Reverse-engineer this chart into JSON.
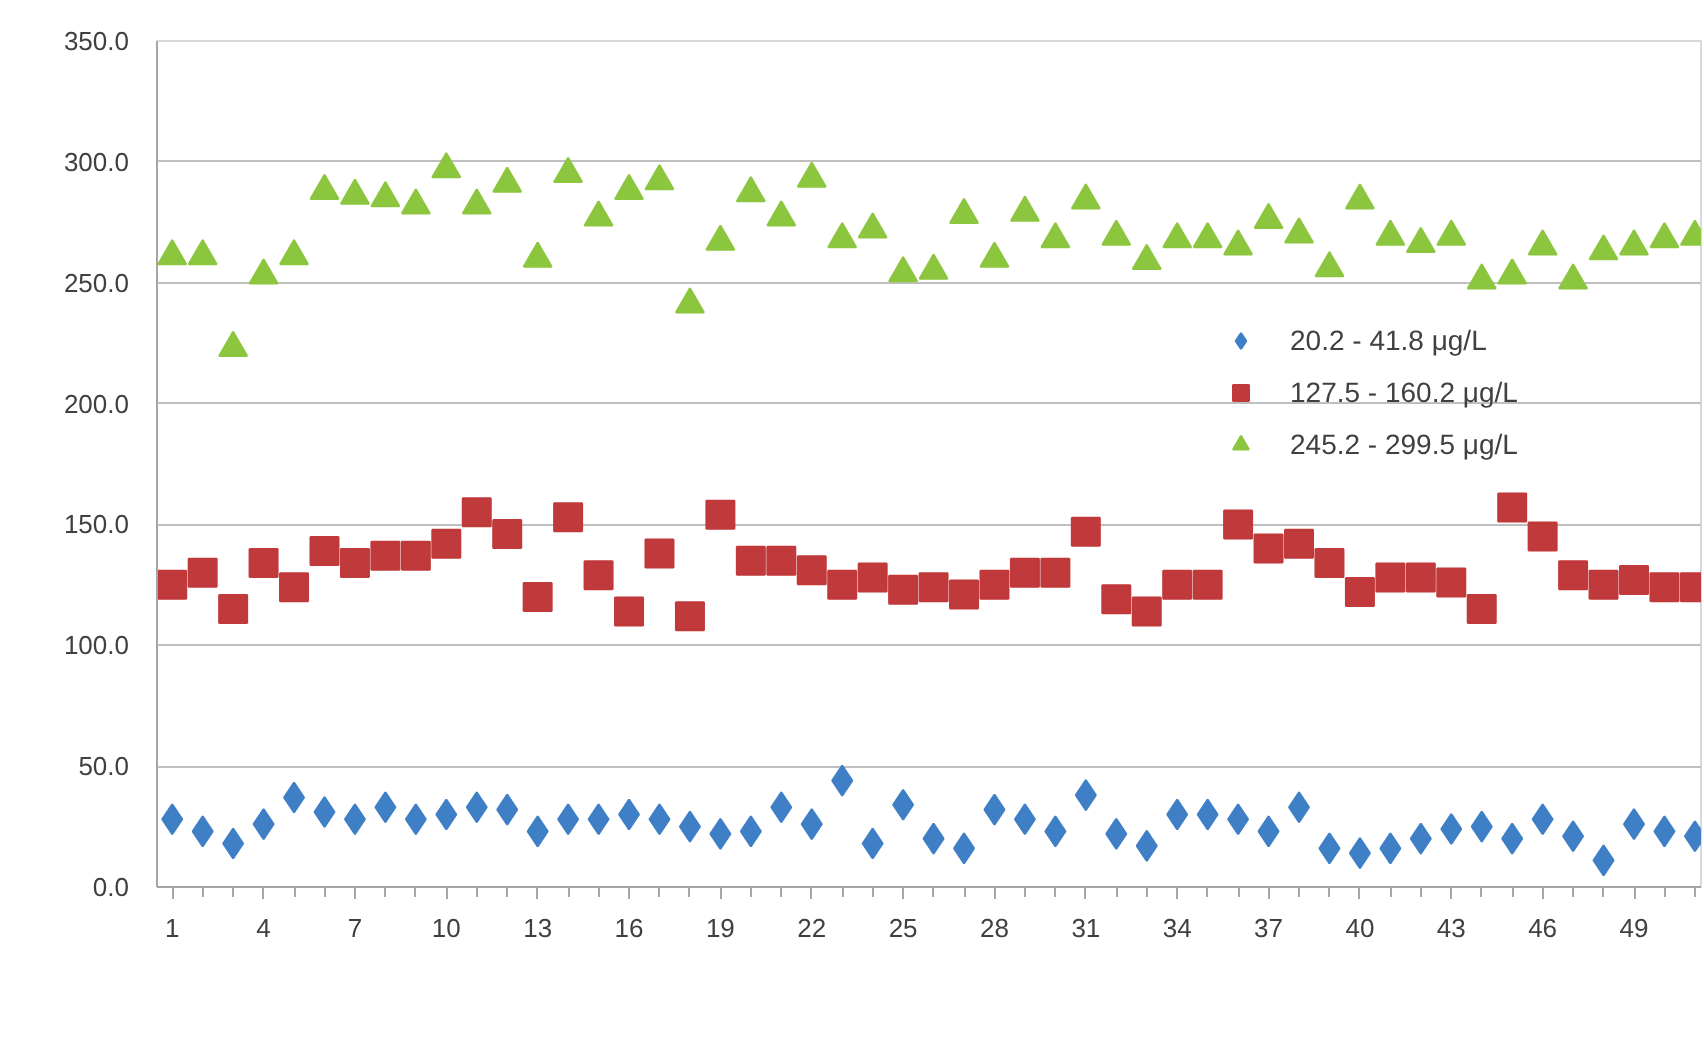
{
  "chart_data": {
    "type": "scatter",
    "x": [
      1,
      2,
      3,
      4,
      5,
      6,
      7,
      8,
      9,
      10,
      11,
      12,
      13,
      14,
      15,
      16,
      17,
      18,
      19,
      20,
      21,
      22,
      23,
      24,
      25,
      26,
      27,
      28,
      29,
      30,
      31,
      32,
      33,
      34,
      35,
      36,
      37,
      38,
      39,
      40,
      41,
      42,
      43,
      44,
      45,
      46,
      47,
      48,
      49,
      50,
      51
    ],
    "series": [
      {
        "name": "20.2 - 41.8 μg/L",
        "color": "#3f7fc6",
        "marker": "diamond",
        "values": [
          28,
          23,
          18,
          26,
          37,
          31,
          28,
          33,
          28,
          30,
          33,
          32,
          23,
          28,
          28,
          30,
          28,
          25,
          22,
          23,
          33,
          26,
          44,
          18,
          34,
          20,
          16,
          32,
          28,
          23,
          38,
          22,
          17,
          30,
          30,
          28,
          23,
          33,
          16,
          14,
          16,
          20,
          24,
          25,
          20,
          28,
          21,
          11,
          26,
          23,
          21
        ]
      },
      {
        "name": "127.5 - 160.2 μg/L",
        "color": "#c0393b",
        "marker": "square",
        "values": [
          125,
          130,
          115,
          134,
          124,
          139,
          134,
          137,
          137,
          142,
          155,
          146,
          120,
          153,
          129,
          114,
          138,
          112,
          154,
          135,
          135,
          131,
          125,
          128,
          123,
          124,
          121,
          125,
          130,
          130,
          147,
          119,
          114,
          125,
          125,
          150,
          140,
          142,
          134,
          122,
          128,
          128,
          126,
          115,
          157,
          145,
          129,
          125,
          127,
          124,
          124
        ]
      },
      {
        "name": "245.2 - 299.5 μg/L",
        "color": "#8cc63f",
        "marker": "triangle",
        "values": [
          261,
          261,
          223,
          253,
          261,
          288,
          286,
          285,
          282,
          297,
          282,
          291,
          260,
          295,
          277,
          288,
          292,
          241,
          267,
          287,
          277,
          293,
          268,
          272,
          254,
          255,
          278,
          260,
          279,
          268,
          284,
          269,
          259,
          268,
          268,
          265,
          276,
          270,
          256,
          284,
          269,
          266,
          269,
          251,
          253,
          265,
          251,
          263,
          265,
          268,
          269
        ]
      }
    ],
    "xlim": [
      0.5,
      51.2
    ],
    "xticks": [
      1,
      4,
      7,
      10,
      13,
      16,
      19,
      22,
      25,
      28,
      31,
      34,
      37,
      40,
      43,
      46,
      49
    ],
    "ylim": [
      0,
      350
    ],
    "yticks": [
      {
        "value": 0,
        "label": "0.0"
      },
      {
        "value": 50,
        "label": "50.0"
      },
      {
        "value": 100,
        "label": "100.0"
      },
      {
        "value": 150,
        "label": "150.0"
      },
      {
        "value": 200,
        "label": "200.0"
      },
      {
        "value": 250,
        "label": "250.0"
      },
      {
        "value": 300,
        "label": "300.0"
      },
      {
        "value": 350,
        "label": "350.0"
      }
    ],
    "grid": "y",
    "legend": "right"
  }
}
